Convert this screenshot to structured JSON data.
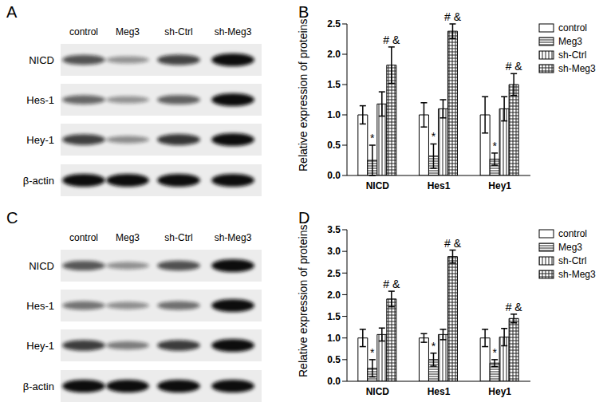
{
  "blots": [
    {
      "title": "A",
      "lanes": [
        "control",
        "Meg3",
        "sh-Ctrl",
        "sh-Meg3"
      ],
      "proteins": [
        "NICD",
        "Hes-1",
        "Hey-1",
        "β-actin"
      ]
    },
    {
      "title": "C",
      "lanes": [
        "control",
        "Meg3",
        "sh-Ctrl",
        "sh-Meg3"
      ],
      "proteins": [
        "NICD",
        "Hes-1",
        "Hey-1",
        "β-actin"
      ]
    }
  ],
  "chart_data": [
    {
      "type": "bar",
      "title": "B",
      "y_label": "Relative expression of proteins",
      "categories": [
        "NICD",
        "Hes1",
        "Hey1"
      ],
      "ylim": [
        0,
        2.5
      ],
      "yticks": [
        {
          "value": 0,
          "label": "0.0"
        },
        {
          "value": 0.5,
          "label": "0.5"
        },
        {
          "value": 1,
          "label": "1.0"
        },
        {
          "value": 1.5,
          "label": "1.5"
        },
        {
          "value": 2,
          "label": "2.0"
        },
        {
          "value": 2.5,
          "label": "2.5"
        }
      ],
      "grid": false,
      "legend": "upper right",
      "series": [
        {
          "name": "control",
          "values": [
            1.0,
            1.0,
            1.0
          ],
          "errors": [
            0.15,
            0.2,
            0.3
          ]
        },
        {
          "name": "Meg3",
          "values": [
            0.25,
            0.32,
            0.27
          ],
          "errors": [
            0.25,
            0.2,
            0.1
          ],
          "annotations": [
            "*",
            "*",
            "*"
          ]
        },
        {
          "name": "sh-Ctrl",
          "values": [
            1.18,
            1.1,
            1.1
          ],
          "errors": [
            0.2,
            0.15,
            0.2
          ]
        },
        {
          "name": "sh-Meg3",
          "values": [
            1.82,
            2.38,
            1.5
          ],
          "errors": [
            0.3,
            0.12,
            0.18
          ],
          "annotations": [
            "# &",
            "# &",
            "# &"
          ]
        }
      ]
    },
    {
      "type": "bar",
      "title": "D",
      "y_label": "Relative expression of proteins",
      "categories": [
        "NICD",
        "Hes1",
        "Hey1"
      ],
      "ylim": [
        0,
        3.5
      ],
      "yticks": [
        {
          "value": 0,
          "label": "0.0"
        },
        {
          "value": 0.5,
          "label": "0.5"
        },
        {
          "value": 1,
          "label": "1.0"
        },
        {
          "value": 1.5,
          "label": "1.5"
        },
        {
          "value": 2,
          "label": "2.0"
        },
        {
          "value": 2.5,
          "label": "2.5"
        },
        {
          "value": 3,
          "label": "3.0"
        },
        {
          "value": 3.5,
          "label": "3.5"
        }
      ],
      "grid": false,
      "legend": "upper right",
      "series": [
        {
          "name": "control",
          "values": [
            1.0,
            1.0,
            1.0
          ],
          "errors": [
            0.2,
            0.1,
            0.2
          ]
        },
        {
          "name": "Meg3",
          "values": [
            0.3,
            0.5,
            0.42
          ],
          "errors": [
            0.2,
            0.15,
            0.08
          ],
          "annotations": [
            "*",
            "*",
            "*"
          ]
        },
        {
          "name": "sh-Ctrl",
          "values": [
            1.08,
            1.08,
            1.02
          ],
          "errors": [
            0.15,
            0.12,
            0.2
          ]
        },
        {
          "name": "sh-Meg3",
          "values": [
            1.9,
            2.88,
            1.45
          ],
          "errors": [
            0.18,
            0.15,
            0.1
          ],
          "annotations": [
            "# &",
            "# &",
            "# &"
          ]
        }
      ]
    }
  ]
}
